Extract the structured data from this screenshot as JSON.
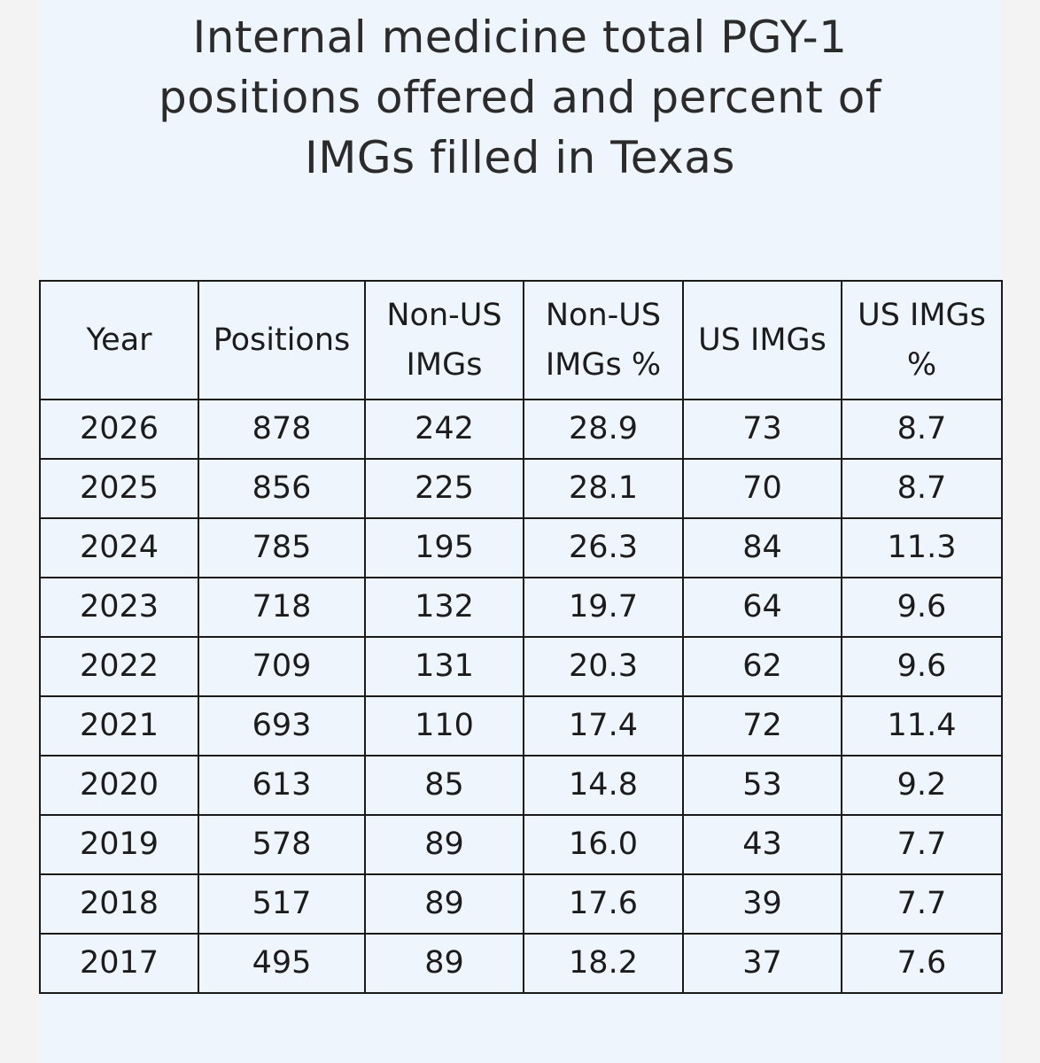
{
  "title": {
    "lines": [
      "Internal medicine total PGY-1",
      "positions offered and percent of",
      "IMGs filled in Texas"
    ]
  },
  "table": {
    "headers": [
      [
        "Year"
      ],
      [
        "Positions"
      ],
      [
        "Non-US",
        "IMGs"
      ],
      [
        "Non-US",
        "IMGs %"
      ],
      [
        "US IMGs"
      ],
      [
        "US IMGs",
        "%"
      ]
    ],
    "rows": [
      [
        "2026",
        "878",
        "242",
        "28.9",
        "73",
        "8.7"
      ],
      [
        "2025",
        "856",
        "225",
        "28.1",
        "70",
        "8.7"
      ],
      [
        "2024",
        "785",
        "195",
        "26.3",
        "84",
        "11.3"
      ],
      [
        "2023",
        "718",
        "132",
        "19.7",
        "64",
        "9.6"
      ],
      [
        "2022",
        "709",
        "131",
        "20.3",
        "62",
        "9.6"
      ],
      [
        "2021",
        "693",
        "110",
        "17.4",
        "72",
        "11.4"
      ],
      [
        "2020",
        "613",
        "85",
        "14.8",
        "53",
        "9.2"
      ],
      [
        "2019",
        "578",
        "89",
        "16.0",
        "43",
        "7.7"
      ],
      [
        "2018",
        "517",
        "89",
        "17.6",
        "39",
        "7.7"
      ],
      [
        "2017",
        "495",
        "89",
        "18.2",
        "37",
        "7.6"
      ]
    ]
  }
}
